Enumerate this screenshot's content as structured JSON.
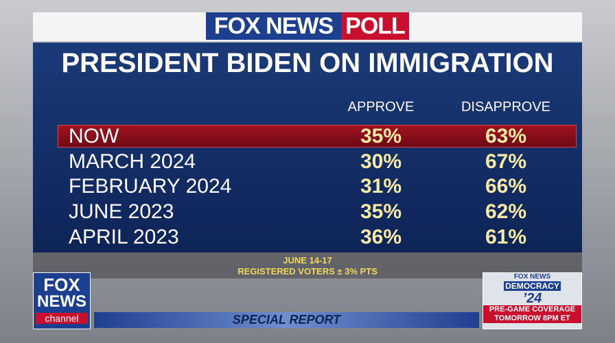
{
  "header": {
    "brand": "FOX NEWS",
    "section": "POLL"
  },
  "title": "PRESIDENT BIDEN ON IMMIGRATION",
  "table": {
    "columns": [
      "APPROVE",
      "DISAPPROVE"
    ],
    "rows": [
      [
        "NOW",
        "35%",
        "63%"
      ],
      [
        "MARCH 2024",
        "30%",
        "67%"
      ],
      [
        "FEBRUARY 2024",
        "31%",
        "66%"
      ],
      [
        "JUNE 2023",
        "35%",
        "62%"
      ],
      [
        "APRIL 2023",
        "36%",
        "61%"
      ]
    ]
  },
  "footnote": [
    "JUNE 14-17",
    "REGISTERED VOTERS ± 3% PTS"
  ],
  "logo": {
    "line1": "FOX",
    "line2": "NEWS",
    "line3": "channel"
  },
  "ticker": "SPECIAL REPORT",
  "promo": {
    "brand": "FOX NEWS",
    "title": "DEMOCRACY",
    "year": "’24",
    "line1": "PRE-GAME COVERAGE",
    "line2": "TOMORROW 8PM ET"
  }
}
